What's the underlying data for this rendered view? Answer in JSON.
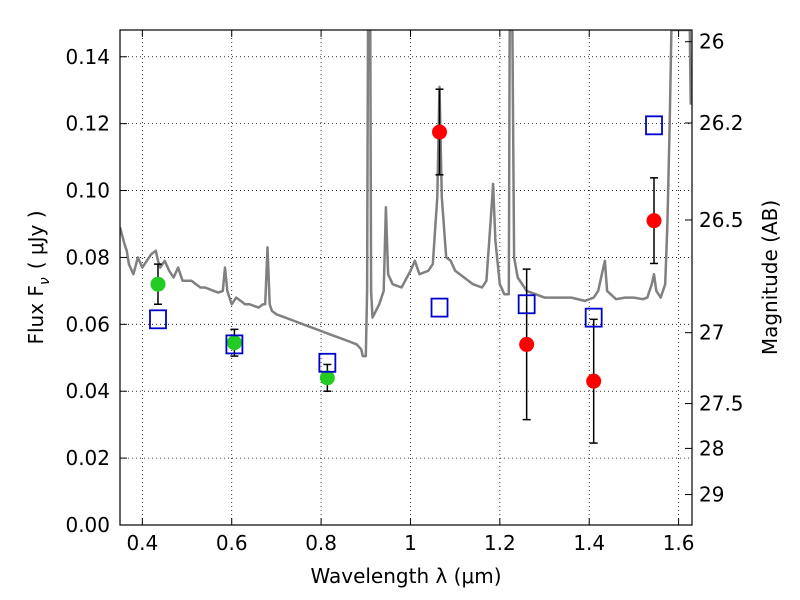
{
  "chart_data": {
    "type": "scatter",
    "xlabel": "Wavelength  λ (μm)",
    "ylabel": "Flux  F",
    "ylabel_sub": "ν",
    "ylabel_unit": "( μJy )",
    "y2label": "Magnitude (AB)",
    "xlim": [
      0.35,
      1.63
    ],
    "ylim": [
      0,
      0.148
    ],
    "grid": true,
    "x_ticks": [
      0.4,
      0.6,
      0.8,
      1.0,
      1.2,
      1.4,
      1.6
    ],
    "x_tick_labels": [
      "0.4",
      "0.6",
      "0.8",
      "1",
      "1.2",
      "1.4",
      "1.6"
    ],
    "y_ticks": [
      0,
      0.02,
      0.04,
      0.06,
      0.08,
      0.1,
      0.12,
      0.14
    ],
    "y_tick_labels": [
      "0.00",
      "0.02",
      "0.04",
      "0.06",
      "0.08",
      "0.10",
      "0.12",
      "0.14"
    ],
    "y2_ticks": [
      {
        "label": "26",
        "flux": 0.1445
      },
      {
        "label": "26.2",
        "flux": 0.1202
      },
      {
        "label": "26.5",
        "flux": 0.0912
      },
      {
        "label": "27",
        "flux": 0.0575
      },
      {
        "label": "27.5",
        "flux": 0.0363
      },
      {
        "label": "28",
        "flux": 0.0229
      },
      {
        "label": "29",
        "flux": 0.0091
      }
    ],
    "series": [
      {
        "marker": "circle",
        "color": "#22cc22",
        "points": [
          {
            "x": 0.435,
            "y": 0.072,
            "err": 0.006
          },
          {
            "x": 0.606,
            "y": 0.0545,
            "err": 0.004
          },
          {
            "x": 0.814,
            "y": 0.044,
            "err": 0.004
          }
        ]
      },
      {
        "marker": "circle",
        "color": "#ff0000",
        "points": [
          {
            "x": 1.065,
            "y": 0.1175,
            "err": 0.0128
          },
          {
            "x": 1.26,
            "y": 0.054,
            "err": 0.0225
          },
          {
            "x": 1.41,
            "y": 0.043,
            "err": 0.0185
          },
          {
            "x": 1.545,
            "y": 0.091,
            "err": 0.0128
          }
        ]
      },
      {
        "marker": "open-square",
        "color": "#0000cc",
        "points": [
          {
            "x": 0.435,
            "y": 0.0615
          },
          {
            "x": 0.606,
            "y": 0.054
          },
          {
            "x": 0.814,
            "y": 0.0485
          },
          {
            "x": 1.065,
            "y": 0.065
          },
          {
            "x": 1.26,
            "y": 0.066
          },
          {
            "x": 1.41,
            "y": 0.062
          },
          {
            "x": 1.545,
            "y": 0.1195
          }
        ]
      }
    ],
    "spectrum": {
      "color": "#808080",
      "points": [
        [
          0.35,
          0.089
        ],
        [
          0.36,
          0.084
        ],
        [
          0.365,
          0.082
        ],
        [
          0.37,
          0.078
        ],
        [
          0.38,
          0.075
        ],
        [
          0.39,
          0.08
        ],
        [
          0.4,
          0.077
        ],
        [
          0.41,
          0.079
        ],
        [
          0.42,
          0.081
        ],
        [
          0.43,
          0.082
        ],
        [
          0.435,
          0.079
        ],
        [
          0.44,
          0.077
        ],
        [
          0.45,
          0.079
        ],
        [
          0.46,
          0.076
        ],
        [
          0.47,
          0.074
        ],
        [
          0.48,
          0.077
        ],
        [
          0.49,
          0.073
        ],
        [
          0.5,
          0.073
        ],
        [
          0.51,
          0.073
        ],
        [
          0.52,
          0.072
        ],
        [
          0.53,
          0.071
        ],
        [
          0.54,
          0.071
        ],
        [
          0.55,
          0.0705
        ],
        [
          0.56,
          0.07
        ],
        [
          0.57,
          0.0695
        ],
        [
          0.58,
          0.07
        ],
        [
          0.585,
          0.077
        ],
        [
          0.59,
          0.07
        ],
        [
          0.6,
          0.066
        ],
        [
          0.61,
          0.068
        ],
        [
          0.62,
          0.067
        ],
        [
          0.63,
          0.066
        ],
        [
          0.64,
          0.066
        ],
        [
          0.65,
          0.0655
        ],
        [
          0.66,
          0.065
        ],
        [
          0.67,
          0.066
        ],
        [
          0.675,
          0.066
        ],
        [
          0.68,
          0.083
        ],
        [
          0.685,
          0.066
        ],
        [
          0.69,
          0.064
        ],
        [
          0.7,
          0.063
        ],
        [
          0.72,
          0.062
        ],
        [
          0.74,
          0.061
        ],
        [
          0.76,
          0.06
        ],
        [
          0.78,
          0.059
        ],
        [
          0.8,
          0.058
        ],
        [
          0.82,
          0.057
        ],
        [
          0.84,
          0.056
        ],
        [
          0.86,
          0.055
        ],
        [
          0.88,
          0.054
        ],
        [
          0.89,
          0.0525
        ],
        [
          0.893,
          0.0505
        ],
        [
          0.9,
          0.0505
        ],
        [
          0.903,
          0.07
        ],
        [
          0.905,
          0.148
        ],
        [
          0.91,
          0.148
        ],
        [
          0.912,
          0.07
        ],
        [
          0.915,
          0.062
        ],
        [
          0.93,
          0.066
        ],
        [
          0.94,
          0.07
        ],
        [
          0.945,
          0.095
        ],
        [
          0.95,
          0.075
        ],
        [
          0.96,
          0.072
        ],
        [
          0.98,
          0.071
        ],
        [
          1.0,
          0.076
        ],
        [
          1.01,
          0.079
        ],
        [
          1.02,
          0.075
        ],
        [
          1.04,
          0.076
        ],
        [
          1.05,
          0.078
        ],
        [
          1.06,
          0.098
        ],
        [
          1.065,
          0.131
        ],
        [
          1.07,
          0.098
        ],
        [
          1.08,
          0.08
        ],
        [
          1.09,
          0.079
        ],
        [
          1.1,
          0.076
        ],
        [
          1.12,
          0.074
        ],
        [
          1.14,
          0.072
        ],
        [
          1.16,
          0.071
        ],
        [
          1.17,
          0.073
        ],
        [
          1.18,
          0.092
        ],
        [
          1.185,
          0.102
        ],
        [
          1.19,
          0.085
        ],
        [
          1.2,
          0.072
        ],
        [
          1.21,
          0.069
        ],
        [
          1.22,
          0.069
        ],
        [
          1.222,
          0.148
        ],
        [
          1.228,
          0.148
        ],
        [
          1.232,
          0.08
        ],
        [
          1.24,
          0.074
        ],
        [
          1.26,
          0.07
        ],
        [
          1.28,
          0.069
        ],
        [
          1.3,
          0.068
        ],
        [
          1.33,
          0.068
        ],
        [
          1.36,
          0.068
        ],
        [
          1.39,
          0.067
        ],
        [
          1.41,
          0.068
        ],
        [
          1.42,
          0.07
        ],
        [
          1.43,
          0.076
        ],
        [
          1.435,
          0.079
        ],
        [
          1.44,
          0.07
        ],
        [
          1.46,
          0.0675
        ],
        [
          1.48,
          0.068
        ],
        [
          1.5,
          0.068
        ],
        [
          1.52,
          0.0675
        ],
        [
          1.53,
          0.068
        ],
        [
          1.54,
          0.072
        ],
        [
          1.545,
          0.075
        ],
        [
          1.55,
          0.07
        ],
        [
          1.56,
          0.068
        ],
        [
          1.57,
          0.072
        ],
        [
          1.575,
          0.09
        ],
        [
          1.58,
          0.12
        ],
        [
          1.584,
          0.148
        ],
        [
          1.625,
          0.148
        ],
        [
          1.627,
          0.126
        ],
        [
          1.63,
          0.126
        ]
      ]
    }
  }
}
